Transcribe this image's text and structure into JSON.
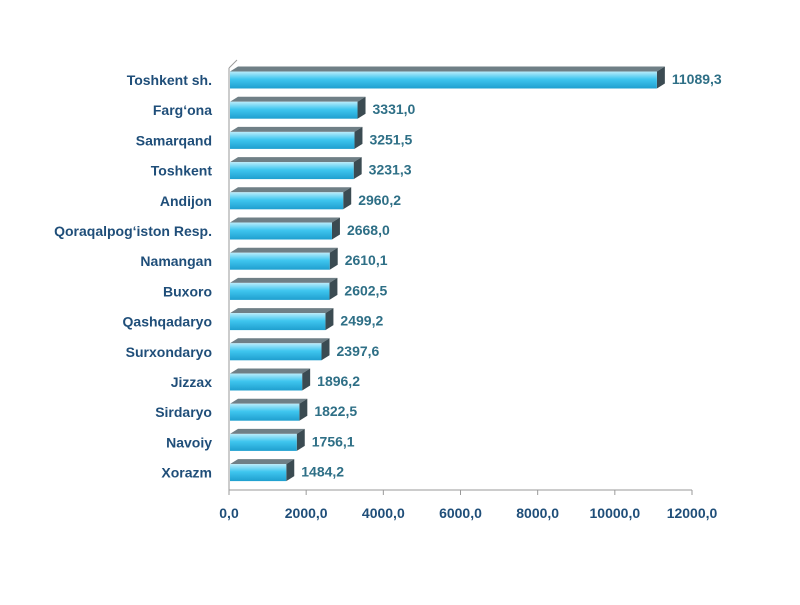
{
  "chart_data": {
    "type": "bar",
    "orientation": "horizontal",
    "categories": [
      "Toshkent sh.",
      "Farg‘ona",
      "Samarqand",
      "Toshkent",
      "Andijon",
      "Qoraqalpog‘iston Resp.",
      "Namangan",
      "Buxoro",
      "Qashqadaryo",
      "Surxondaryo",
      "Jizzax",
      "Sirdaryo",
      "Navoiy",
      "Xorazm"
    ],
    "values": [
      11089.3,
      3331.0,
      3251.5,
      3231.3,
      2960.2,
      2668.0,
      2610.1,
      2602.5,
      2499.2,
      2397.6,
      1896.2,
      1822.5,
      1756.1,
      1484.2
    ],
    "value_labels": [
      "11089,3",
      "3331,0",
      "3251,5",
      "3231,3",
      "2960,2",
      "2668,0",
      "2610,1",
      "2602,5",
      "2499,2",
      "2397,6",
      "1896,2",
      "1822,5",
      "1756,1",
      "1484,2"
    ],
    "xlim": [
      0,
      12000
    ],
    "xticks": [
      0,
      2000,
      4000,
      6000,
      8000,
      10000,
      12000
    ],
    "xtick_labels": [
      "0,0",
      "2000,0",
      "4000,0",
      "6000,0",
      "8000,0",
      "10000,0",
      "12000,0"
    ],
    "title": "",
    "xlabel": "",
    "ylabel": "",
    "grid": false,
    "legend": "none",
    "colors": {
      "bar_light": "#b9ecfb",
      "bar_mid": "#3fc6ef",
      "bar_dark": "#1f9fcf",
      "bar_top": "#6f7f86",
      "bar_end": "#3b4b52",
      "category_text": "#1f4e79",
      "value_text": "#2e6f86",
      "axis": "#9a9a9a"
    }
  }
}
